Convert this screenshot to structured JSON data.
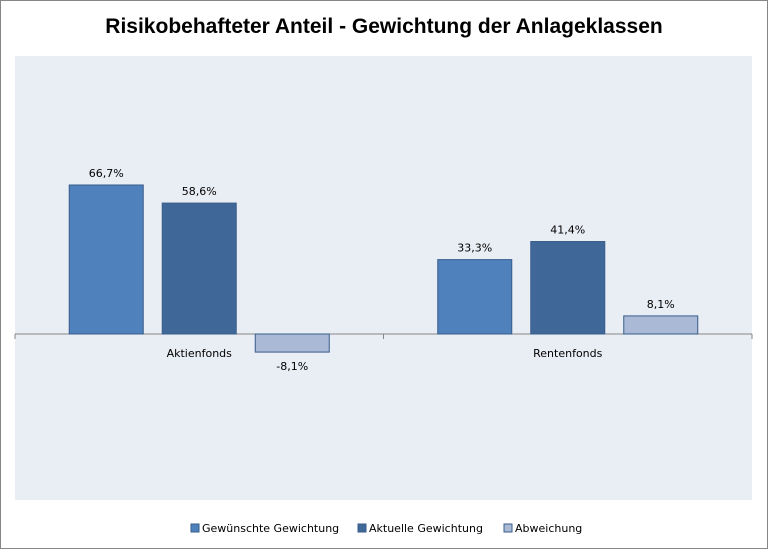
{
  "chart_data": {
    "type": "bar",
    "title": "Risikobehafteter Anteil - Gewichtung der Anlageklassen",
    "categories": [
      "Aktienfonds",
      "Rentenfonds"
    ],
    "series": [
      {
        "name": "Gewünschte Gewichtung",
        "values": [
          66.7,
          33.3
        ],
        "labels": [
          "66,7%",
          "33,3%"
        ],
        "color": "#4f81bd"
      },
      {
        "name": "Aktuelle Gewichtung",
        "values": [
          58.6,
          41.4
        ],
        "labels": [
          "58,6%",
          "41,4%"
        ],
        "color": "#3f6899"
      },
      {
        "name": "Abweichung",
        "values": [
          -8.1,
          8.1
        ],
        "labels": [
          "-8,1%",
          "8,1%"
        ],
        "color": "#a9b9d6"
      }
    ],
    "legend_position": "bottom",
    "grid": false,
    "plot_background": "#e9edf4"
  }
}
